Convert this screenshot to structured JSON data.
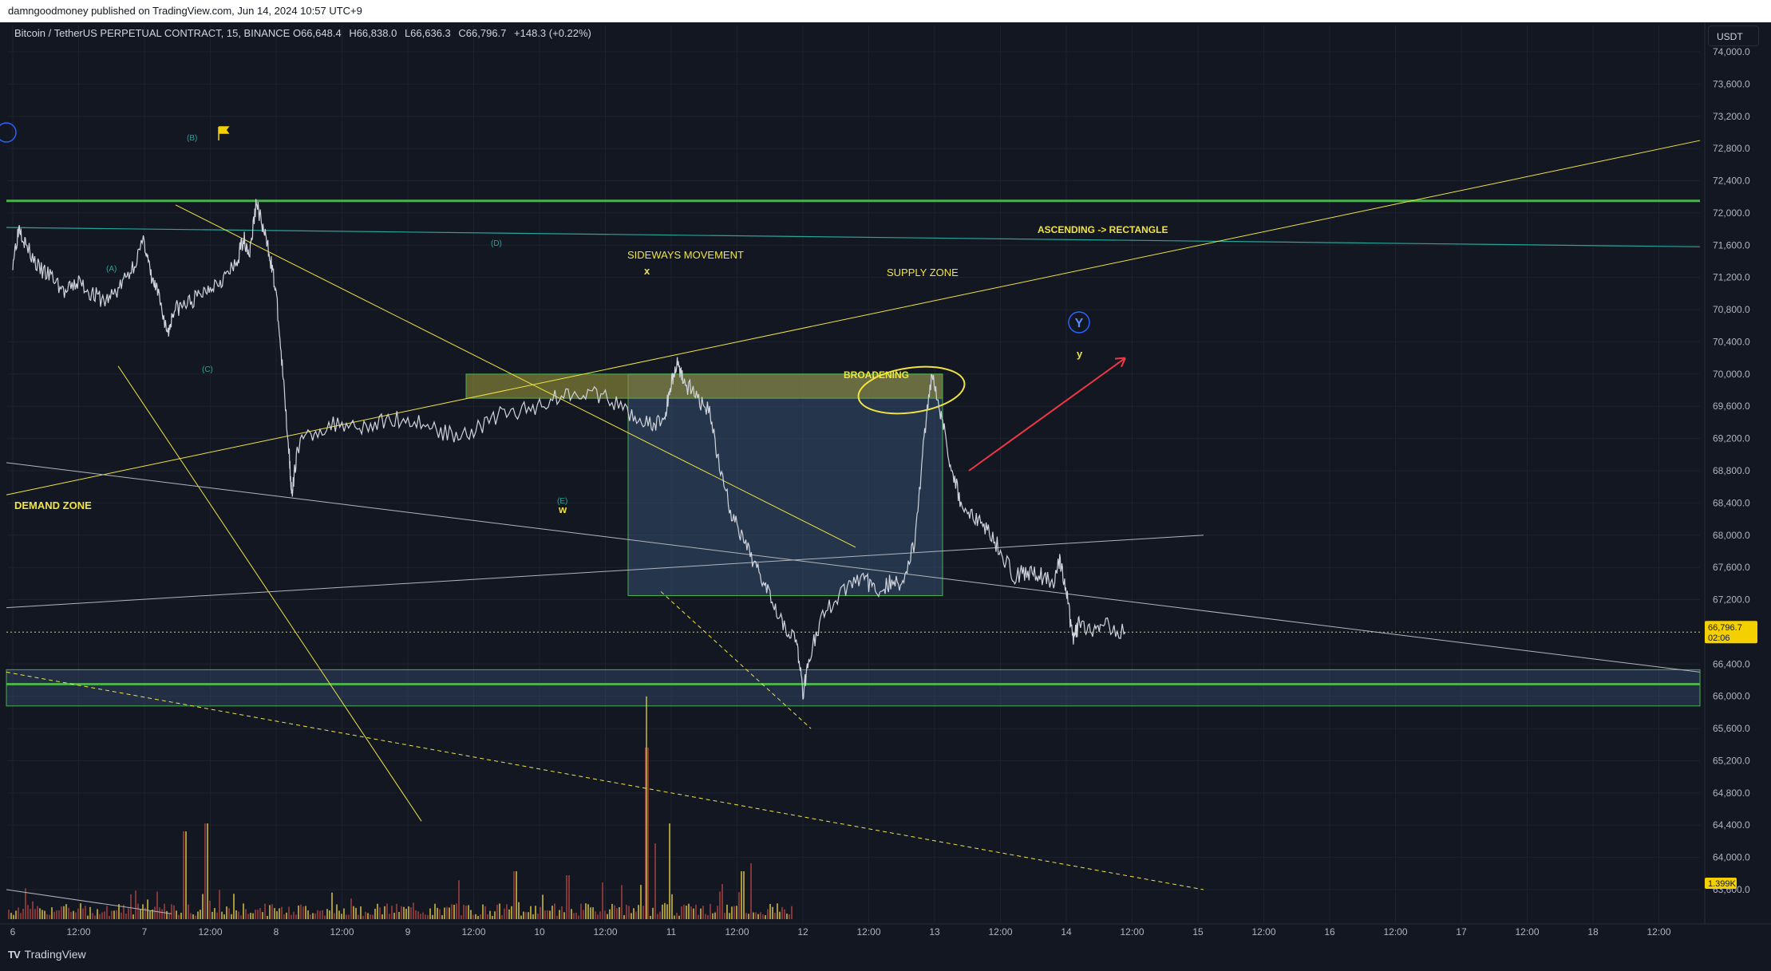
{
  "header": {
    "published": "damngoodmoney published on TradingView.com, Jun 14, 2024 10:57 UTC+9"
  },
  "legend": {
    "symbol": "Bitcoin / TetherUS PERPETUAL CONTRACT, 15, BINANCE",
    "open_label": "O",
    "open": "66,648.4",
    "high_label": "H",
    "high": "66,838.0",
    "low_label": "L",
    "low": "66,636.3",
    "close_label": "C",
    "close": "66,796.7",
    "change": "+148.3 (+0.22%)"
  },
  "currency": "USDT",
  "footer": {
    "brand": "TradingView",
    "logo": "TV"
  },
  "price_tag": {
    "value": "66,796.7",
    "countdown": "02:06"
  },
  "volume_tag": "1.399K",
  "colors": {
    "background": "#131722",
    "green_line": "#4caf50",
    "teal_line": "#26a69a",
    "yellow": "#f0e442",
    "white_line": "#b2b5be",
    "red_arrow": "#f23645",
    "zone_blue": "#3b5a80",
    "supply_fill": "#8d8a3a"
  },
  "annotations": {
    "sideways": "SIDEWAYS MOVEMENT",
    "supply": "SUPPLY ZONE",
    "broadening": "BROADENING",
    "ascending": "ASCENDING -> RECTANGLE",
    "demand": "DEMAND ZONE",
    "wave_x": "x",
    "wave_w": "w",
    "wave_y": "y",
    "wave_Y": "Y",
    "wave_A": "(A)",
    "wave_B": "(B)",
    "wave_C": "(C)",
    "wave_D": "(D)",
    "wave_E": "(E)"
  },
  "chart_data": {
    "type": "line",
    "title": "Bitcoin / TetherUS PERPETUAL CONTRACT, 15, BINANCE",
    "x_ticks": [
      "6",
      "12:00",
      "7",
      "12:00",
      "8",
      "12:00",
      "9",
      "12:00",
      "10",
      "12:00",
      "11",
      "12:00",
      "12",
      "12:00",
      "13",
      "12:00",
      "14",
      "12:00",
      "15",
      "12:00",
      "16",
      "12:00",
      "17",
      "12:00",
      "18",
      "12:00"
    ],
    "y_ticks": [
      "74,000.0",
      "73,600.0",
      "73,200.0",
      "72,800.0",
      "72,400.0",
      "72,000.0",
      "71,600.0",
      "71,200.0",
      "70,800.0",
      "70,400.0",
      "70,000.0",
      "69,600.0",
      "69,200.0",
      "68,800.0",
      "68,400.0",
      "68,000.0",
      "67,600.0",
      "67,200.0",
      "66,400.0",
      "66,000.0",
      "65,600.0",
      "65,200.0",
      "64,800.0",
      "64,400.0",
      "64,000.0",
      "63,600.0"
    ],
    "ylim": [
      63400,
      74200
    ],
    "grid": true,
    "series": [
      {
        "values": [
          [
            6.0,
            71400
          ],
          [
            6.05,
            71850
          ],
          [
            6.1,
            71600
          ],
          [
            6.2,
            71300
          ],
          [
            6.3,
            71200
          ],
          [
            6.4,
            71000
          ],
          [
            6.5,
            71150
          ],
          [
            6.6,
            71000
          ],
          [
            6.7,
            70900
          ],
          [
            6.8,
            71050
          ],
          [
            6.9,
            71300
          ],
          [
            7.0,
            71650
          ],
          [
            7.05,
            71200
          ],
          [
            7.1,
            71000
          ],
          [
            7.18,
            70500
          ],
          [
            7.22,
            70800
          ],
          [
            7.3,
            70850
          ],
          [
            7.4,
            70950
          ],
          [
            7.5,
            71100
          ],
          [
            7.6,
            71200
          ],
          [
            7.7,
            71350
          ],
          [
            7.75,
            71700
          ],
          [
            7.8,
            71500
          ],
          [
            7.85,
            72150
          ],
          [
            7.9,
            71800
          ],
          [
            7.95,
            71500
          ],
          [
            8.0,
            71000
          ],
          [
            8.05,
            70000
          ],
          [
            8.1,
            69000
          ],
          [
            8.12,
            68450
          ],
          [
            8.16,
            69100
          ],
          [
            8.3,
            69300
          ],
          [
            8.5,
            69400
          ],
          [
            8.7,
            69350
          ],
          [
            8.9,
            69450
          ],
          [
            9.1,
            69400
          ],
          [
            9.3,
            69250
          ],
          [
            9.5,
            69300
          ],
          [
            9.7,
            69500
          ],
          [
            9.9,
            69550
          ],
          [
            10.1,
            69700
          ],
          [
            10.3,
            69800
          ],
          [
            10.5,
            69700
          ],
          [
            10.7,
            69500
          ],
          [
            10.85,
            69350
          ],
          [
            10.95,
            69450
          ],
          [
            11.0,
            69900
          ],
          [
            11.05,
            70150
          ],
          [
            11.1,
            69900
          ],
          [
            11.2,
            69700
          ],
          [
            11.3,
            69500
          ],
          [
            11.35,
            69000
          ],
          [
            11.45,
            68300
          ],
          [
            11.55,
            67900
          ],
          [
            11.65,
            67600
          ],
          [
            11.75,
            67300
          ],
          [
            11.85,
            66900
          ],
          [
            11.95,
            66700
          ],
          [
            12.0,
            66050
          ],
          [
            12.05,
            66500
          ],
          [
            12.15,
            67000
          ],
          [
            12.3,
            67300
          ],
          [
            12.45,
            67500
          ],
          [
            12.55,
            67300
          ],
          [
            12.65,
            67400
          ],
          [
            12.75,
            67400
          ],
          [
            12.85,
            67900
          ],
          [
            12.92,
            69200
          ],
          [
            12.98,
            70050
          ],
          [
            13.05,
            69500
          ],
          [
            13.12,
            68900
          ],
          [
            13.2,
            68400
          ],
          [
            13.3,
            68200
          ],
          [
            13.4,
            68100
          ],
          [
            13.5,
            67800
          ],
          [
            13.6,
            67500
          ],
          [
            13.7,
            67550
          ],
          [
            13.8,
            67500
          ],
          [
            13.9,
            67400
          ],
          [
            13.95,
            67700
          ],
          [
            14.0,
            67300
          ],
          [
            14.05,
            66700
          ],
          [
            14.1,
            66900
          ],
          [
            14.2,
            66750
          ],
          [
            14.3,
            66900
          ],
          [
            14.45,
            66797
          ]
        ]
      }
    ]
  }
}
